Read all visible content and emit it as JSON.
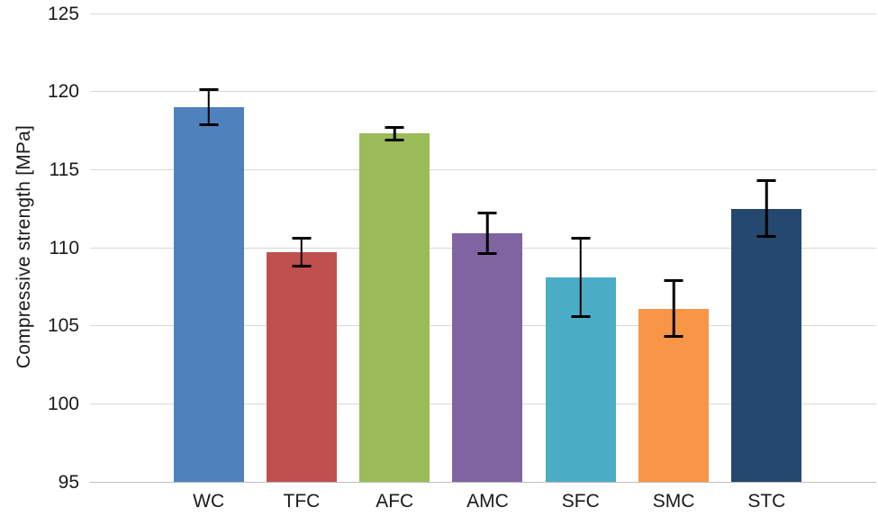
{
  "chart_data": {
    "type": "bar",
    "title": "",
    "xlabel": "",
    "ylabel": "Compressive strength [MPa]",
    "categories": [
      "WC",
      "TFC",
      "AFC",
      "AMC",
      "SFC",
      "SMC",
      "STC"
    ],
    "values": [
      119.0,
      109.7,
      117.3,
      110.9,
      108.1,
      106.1,
      112.5
    ],
    "errors": [
      1.1,
      0.9,
      0.4,
      1.3,
      2.5,
      1.8,
      1.8
    ],
    "bar_colors": [
      "#4F81BD",
      "#C0504D",
      "#9BBB59",
      "#8064A2",
      "#4BACC6",
      "#F79646",
      "#25486E"
    ],
    "ylim": [
      95,
      125
    ],
    "ytick_step": 5,
    "grid": true,
    "gridline_color": "#d9d9d9",
    "error_bar_color": "#000000",
    "legend": "none"
  }
}
